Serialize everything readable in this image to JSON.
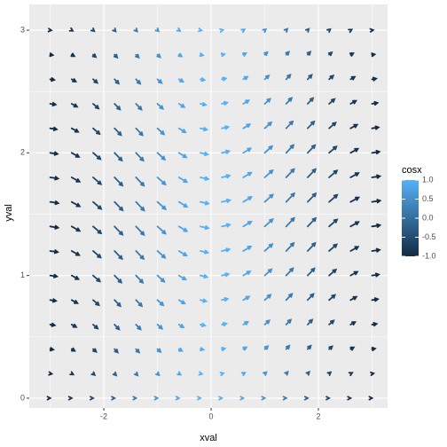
{
  "chart_data": {
    "type": "quiver",
    "x_label": "xval",
    "y_label": "yval",
    "legend_title": "cosx",
    "x": [
      -3,
      -2.6,
      -2.2,
      -1.8,
      -1.4,
      -1,
      -0.6,
      -0.2,
      0.2,
      0.6,
      1,
      1.4,
      1.8,
      2.2,
      2.6,
      3
    ],
    "y": [
      0,
      0.2,
      0.4,
      0.6,
      0.8,
      1,
      1.2,
      1.4,
      1.6,
      1.8,
      2,
      2.2,
      2.4,
      2.6,
      2.8,
      3
    ],
    "cosx": [
      -0.99,
      -0.857,
      -0.589,
      -0.227,
      0.17,
      0.54,
      0.825,
      0.98,
      0.98,
      0.825,
      0.54,
      0.17,
      -0.227,
      -0.589,
      -0.857,
      -0.99
    ],
    "dx": [
      0,
      0.03,
      0.058,
      0.085,
      0.108,
      0.126,
      0.14,
      0.148,
      0.15,
      0.146,
      0.136,
      0.121,
      0.101,
      0.077,
      0.05,
      0.021
    ],
    "dy": [
      [
        0,
        0,
        0,
        0,
        0,
        0,
        0,
        0,
        0,
        0,
        0,
        0,
        0,
        0,
        0,
        0
      ],
      [
        -0.002,
        -0.007,
        -0.011,
        -0.014,
        -0.014,
        -0.012,
        -0.008,
        -0.003,
        0.003,
        0.008,
        0.012,
        0.014,
        0.014,
        0.011,
        0.007,
        0.002
      ],
      [
        -0.004,
        -0.014,
        -0.022,
        -0.027,
        -0.027,
        -0.023,
        -0.015,
        -0.005,
        0.005,
        0.015,
        0.023,
        0.027,
        0.027,
        0.022,
        0.014,
        0.004
      ],
      [
        -0.006,
        -0.02,
        -0.032,
        -0.039,
        -0.039,
        -0.033,
        -0.022,
        -0.008,
        0.008,
        0.022,
        0.033,
        0.039,
        0.039,
        0.032,
        0.02,
        0.006
      ],
      [
        -0.007,
        -0.026,
        -0.041,
        -0.049,
        -0.049,
        -0.042,
        -0.028,
        -0.01,
        0.01,
        0.028,
        0.042,
        0.049,
        0.049,
        0.041,
        0.026,
        0.007
      ],
      [
        -0.008,
        -0.03,
        -0.048,
        -0.057,
        -0.058,
        -0.05,
        -0.033,
        -0.012,
        0.012,
        0.033,
        0.05,
        0.058,
        0.057,
        0.048,
        0.03,
        0.008
      ],
      [
        -0.009,
        -0.034,
        -0.053,
        -0.064,
        -0.064,
        -0.055,
        -0.037,
        -0.013,
        0.013,
        0.037,
        0.055,
        0.064,
        0.064,
        0.053,
        0.034,
        0.009
      ],
      [
        -0.01,
        -0.036,
        -0.056,
        -0.067,
        -0.068,
        -0.058,
        -0.039,
        -0.014,
        0.014,
        0.039,
        0.058,
        0.068,
        0.067,
        0.056,
        0.036,
        0.01
      ],
      [
        -0.01,
        -0.036,
        -0.057,
        -0.068,
        -0.069,
        -0.059,
        -0.04,
        -0.014,
        0.014,
        0.04,
        0.059,
        0.069,
        0.068,
        0.057,
        0.036,
        0.01
      ],
      [
        -0.01,
        -0.035,
        -0.055,
        -0.066,
        -0.067,
        -0.057,
        -0.038,
        -0.014,
        0.014,
        0.038,
        0.057,
        0.067,
        0.066,
        0.055,
        0.035,
        0.01
      ],
      [
        -0.009,
        -0.033,
        -0.051,
        -0.062,
        -0.063,
        -0.054,
        -0.036,
        -0.013,
        0.013,
        0.036,
        0.054,
        0.063,
        0.062,
        0.051,
        0.033,
        0.009
      ],
      [
        -0.008,
        -0.029,
        -0.046,
        -0.055,
        -0.056,
        -0.048,
        -0.032,
        -0.011,
        0.011,
        0.032,
        0.048,
        0.056,
        0.055,
        0.046,
        0.029,
        0.008
      ],
      [
        -0.007,
        -0.024,
        -0.038,
        -0.046,
        -0.047,
        -0.04,
        -0.027,
        -0.009,
        0.009,
        0.027,
        0.04,
        0.047,
        0.046,
        0.038,
        0.024,
        0.007
      ],
      [
        -0.005,
        -0.019,
        -0.029,
        -0.035,
        -0.036,
        -0.03,
        -0.02,
        -0.007,
        0.007,
        0.02,
        0.03,
        0.036,
        0.035,
        0.029,
        0.019,
        0.005
      ],
      [
        -0.003,
        -0.012,
        -0.019,
        -0.023,
        -0.023,
        -0.02,
        -0.013,
        -0.005,
        0.005,
        0.013,
        0.02,
        0.023,
        0.023,
        0.019,
        0.012,
        0.003
      ],
      [
        -0.001,
        -0.005,
        -0.008,
        -0.01,
        -0.01,
        -0.008,
        -0.006,
        -0.002,
        0.002,
        0.006,
        0.008,
        0.01,
        0.01,
        0.008,
        0.005,
        0.001
      ]
    ],
    "xlim": [
      -3.39,
      3.29
    ],
    "ylim": [
      -0.08,
      3.21
    ],
    "xticks": [
      -2,
      0,
      2
    ],
    "yticks": [
      0,
      1,
      2,
      3
    ],
    "minor_xticks": [
      -3,
      -1,
      1,
      3
    ],
    "minor_yticks": [
      0.5,
      1.5,
      2.5
    ],
    "color_low": "#132B43",
    "color_high": "#56B1F7",
    "colorbar_lim": [
      -1,
      1
    ],
    "colorbar_ticks": [
      {
        "value": 1,
        "label": "1.0"
      },
      {
        "value": 0.5,
        "label": "0.5"
      },
      {
        "value": 0,
        "label": "0.0"
      },
      {
        "value": -0.5,
        "label": "-0.5"
      },
      {
        "value": -1,
        "label": "-1.0"
      }
    ]
  }
}
